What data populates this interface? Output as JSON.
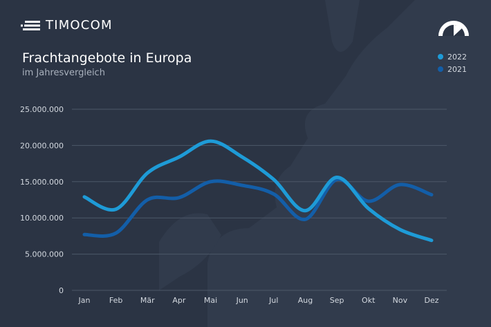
{
  "brand": {
    "name": "TIMOCOM",
    "logo_icon": "timocom-speed-lines-icon",
    "gauge_icon": "speedometer-icon"
  },
  "colors": {
    "background": "#2b3444",
    "series_2022": "#1e9bd7",
    "series_2021": "#135ea8",
    "grid": "#4d5868"
  },
  "chart_data": {
    "type": "line",
    "title": "Frachtangebote in Europa",
    "subtitle": "im Jahresvergleich",
    "xlabel": "",
    "ylabel": "",
    "categories": [
      "Jan",
      "Feb",
      "Mär",
      "Apr",
      "Mai",
      "Jun",
      "Jul",
      "Aug",
      "Sep",
      "Okt",
      "Nov",
      "Dez"
    ],
    "ylim": [
      0,
      25000000
    ],
    "yticks": [
      0,
      5000000,
      10000000,
      15000000,
      20000000,
      25000000
    ],
    "ytick_labels": [
      "0",
      "5.000.000",
      "10.000.000",
      "15.000.000",
      "20.000.000",
      "25.000.000"
    ],
    "grid": true,
    "legend_position": "top-right",
    "series": [
      {
        "name": "2022",
        "color": "#1e9bd7",
        "values": [
          12900000,
          11200000,
          16200000,
          18400000,
          20600000,
          18400000,
          15300000,
          11000000,
          15600000,
          11300000,
          8400000,
          6900000
        ]
      },
      {
        "name": "2021",
        "color": "#135ea8",
        "values": [
          7700000,
          7900000,
          12500000,
          12800000,
          15000000,
          14500000,
          13300000,
          9800000,
          15300000,
          12300000,
          14600000,
          13200000
        ]
      }
    ]
  }
}
